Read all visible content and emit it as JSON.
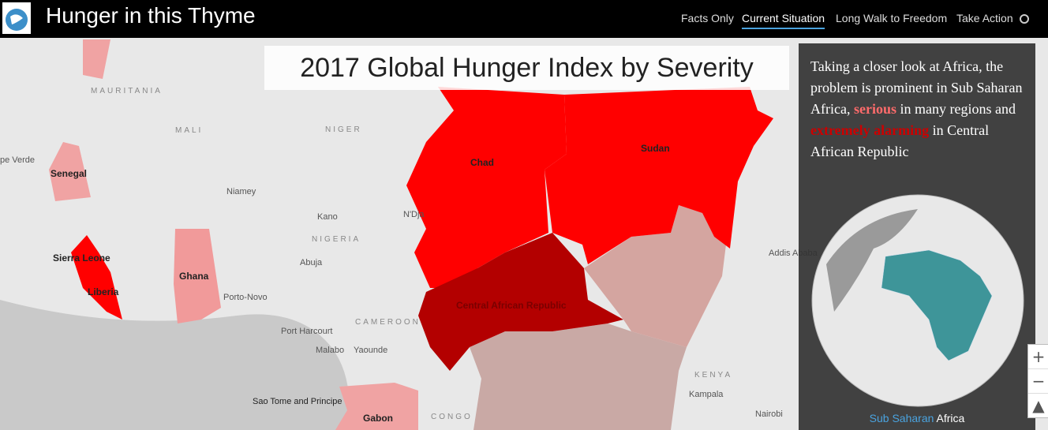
{
  "header": {
    "title": "Hunger in this Thyme",
    "nav": [
      "Facts Only",
      "Current Situation",
      "Long Walk to Freedom",
      "Take Action"
    ]
  },
  "map": {
    "title": "2017 Global Hunger Index by Severity",
    "labels": [
      "MAURITANIA",
      "MALI",
      "NIGER",
      "pe Verde",
      "Senegal",
      "Chad",
      "Sudan",
      "Niamey",
      "Kano",
      "N'Dja",
      "NIGERIA",
      "Abuja",
      "Sierra Leone",
      "Liberia",
      "Ghana",
      "Porto-Novo",
      "Port Harcourt",
      "CAMEROON",
      "Malabo",
      "Yaounde",
      "Central African Republic",
      "Addis Ababa",
      "KENYA",
      "Kampala",
      "Nairobi",
      "Sao Tome and Principe",
      "Gabon",
      "CONGO"
    ],
    "zoom": [
      "+",
      "−"
    ]
  },
  "panel": {
    "text": [
      "Taking a closer look at Africa, the problem is prominent in Sub Saharan Africa, ",
      "serious",
      " in many regions and ",
      "extremely alarming",
      " in Central African Republic"
    ],
    "caption": [
      "Sub Saharan",
      "Africa"
    ]
  }
}
